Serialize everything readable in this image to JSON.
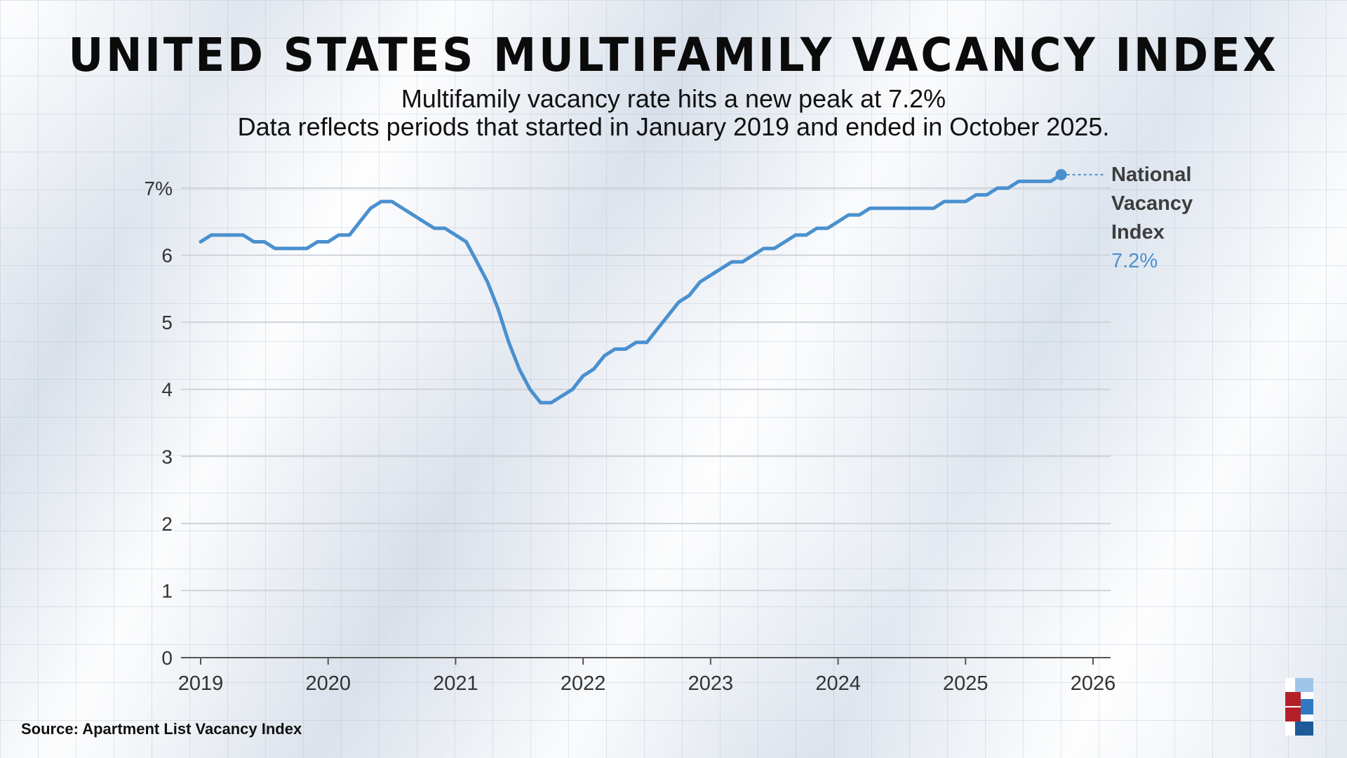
{
  "header": {
    "title": "UNITED STATES MULTIFAMILY VACANCY INDEX",
    "subtitle_line1": "Multifamily vacancy rate hits a new peak at 7.2%",
    "subtitle_line2": "Data reflects periods that started in January 2019 and ended in October 2025."
  },
  "footer": {
    "source": "Source: Apartment List Vacancy Index",
    "logo_icon": "brand-logo-icon"
  },
  "colors": {
    "line": "#4a90cf",
    "grid": "#cfd3d8",
    "axis": "#555555",
    "text": "#333333"
  },
  "chart_data": {
    "type": "line",
    "title": "",
    "xlabel": "",
    "ylabel": "",
    "xlim": [
      2019,
      2026
    ],
    "ylim": [
      0,
      7
    ],
    "y_ticks": [
      0,
      1,
      2,
      3,
      4,
      5,
      6,
      7
    ],
    "y_tick_labels": [
      "0",
      "1",
      "2",
      "3",
      "4",
      "5",
      "6",
      "7%"
    ],
    "x_ticks": [
      2019,
      2020,
      2021,
      2022,
      2023,
      2024,
      2025,
      2026
    ],
    "x_tick_labels": [
      "2019",
      "2020",
      "2021",
      "2022",
      "2023",
      "2024",
      "2025",
      "2026"
    ],
    "grid": true,
    "legend": "end-of-line label",
    "series": [
      {
        "name": "National Vacancy Index",
        "label_lines": [
          "National",
          "Vacancy",
          "Index"
        ],
        "end_value_label": "7.2%",
        "x": [
          2019.0,
          2019.083,
          2019.167,
          2019.25,
          2019.333,
          2019.417,
          2019.5,
          2019.583,
          2019.667,
          2019.75,
          2019.833,
          2019.917,
          2020.0,
          2020.083,
          2020.167,
          2020.25,
          2020.333,
          2020.417,
          2020.5,
          2020.583,
          2020.667,
          2020.75,
          2020.833,
          2020.917,
          2021.0,
          2021.083,
          2021.167,
          2021.25,
          2021.333,
          2021.417,
          2021.5,
          2021.583,
          2021.667,
          2021.75,
          2021.833,
          2021.917,
          2022.0,
          2022.083,
          2022.167,
          2022.25,
          2022.333,
          2022.417,
          2022.5,
          2022.583,
          2022.667,
          2022.75,
          2022.833,
          2022.917,
          2023.0,
          2023.083,
          2023.167,
          2023.25,
          2023.333,
          2023.417,
          2023.5,
          2023.583,
          2023.667,
          2023.75,
          2023.833,
          2023.917,
          2024.0,
          2024.083,
          2024.167,
          2024.25,
          2024.333,
          2024.417,
          2024.5,
          2024.583,
          2024.667,
          2024.75,
          2024.833,
          2024.917,
          2025.0,
          2025.083,
          2025.167,
          2025.25,
          2025.333,
          2025.417,
          2025.5,
          2025.583,
          2025.667,
          2025.75
        ],
        "values": [
          6.2,
          6.3,
          6.3,
          6.3,
          6.3,
          6.2,
          6.2,
          6.1,
          6.1,
          6.1,
          6.1,
          6.2,
          6.2,
          6.3,
          6.3,
          6.5,
          6.7,
          6.8,
          6.8,
          6.7,
          6.6,
          6.5,
          6.4,
          6.4,
          6.3,
          6.2,
          5.9,
          5.6,
          5.2,
          4.7,
          4.3,
          4.0,
          3.8,
          3.8,
          3.9,
          4.0,
          4.2,
          4.3,
          4.5,
          4.6,
          4.6,
          4.7,
          4.7,
          4.9,
          5.1,
          5.3,
          5.4,
          5.6,
          5.7,
          5.8,
          5.9,
          5.9,
          6.0,
          6.1,
          6.1,
          6.2,
          6.3,
          6.3,
          6.4,
          6.4,
          6.5,
          6.6,
          6.6,
          6.7,
          6.7,
          6.7,
          6.7,
          6.7,
          6.7,
          6.7,
          6.8,
          6.8,
          6.8,
          6.9,
          6.9,
          7.0,
          7.0,
          7.1,
          7.1,
          7.1,
          7.1,
          7.2
        ]
      }
    ]
  }
}
